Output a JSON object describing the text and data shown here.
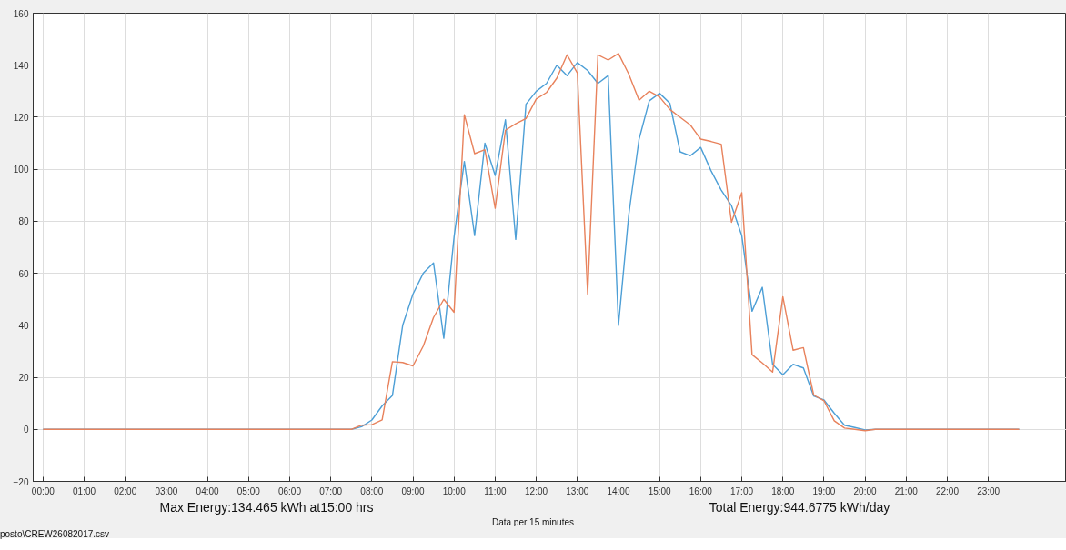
{
  "chart_data": {
    "type": "line",
    "annotations": [
      "Max Energy:134.465 kWh at15:00 hrs",
      "Total Energy:944.6775 kWh/day",
      "Data per 15 minutes",
      "posto\\CREW26082017.csv"
    ],
    "x": [
      0,
      7.25,
      7.5,
      7.75,
      8,
      8.25,
      8.5,
      8.75,
      9,
      9.25,
      9.5,
      9.75,
      10,
      10.25,
      10.5,
      10.75,
      11,
      11.25,
      11.5,
      11.75,
      12,
      12.25,
      12.5,
      12.75,
      13,
      13.25,
      13.5,
      13.75,
      14,
      14.25,
      14.5,
      14.75,
      15,
      15.25,
      15.5,
      15.75,
      16,
      16.25,
      16.5,
      16.75,
      17,
      17.25,
      17.5,
      17.75,
      18,
      18.25,
      18.5,
      18.75,
      19,
      19.25,
      19.5,
      19.75,
      20,
      20.25,
      23.75
    ],
    "series": [
      {
        "color": "#4d9fd6",
        "values": [
          0,
          0,
          0,
          1,
          3.6,
          9,
          13,
          40,
          52,
          60,
          64,
          35,
          74,
          103,
          74.5,
          110,
          97.6,
          119,
          73,
          125,
          130,
          133,
          140,
          136,
          141,
          138,
          133,
          136,
          40,
          82.5,
          111.5,
          126.3,
          129.2,
          125.4,
          106.7,
          105.2,
          108.4,
          99.5,
          92,
          86,
          74.5,
          45.4,
          54.6,
          25,
          21,
          25,
          23.6,
          12.8,
          11.3,
          6.2,
          1.6,
          0.7,
          -0.2,
          0,
          0
        ]
      },
      {
        "color": "#e8825c",
        "values": [
          0,
          0,
          0,
          1.6,
          1.8,
          3.6,
          26,
          25.7,
          24.4,
          32,
          43,
          50,
          45,
          121,
          106,
          107.5,
          85,
          115,
          117.5,
          119.5,
          127,
          129.5,
          135,
          144,
          137,
          52,
          144,
          142,
          144.5,
          136.6,
          126.5,
          130,
          127.8,
          123,
          120,
          117,
          111.6,
          110.7,
          109.6,
          79.6,
          91,
          28.7,
          25.5,
          22,
          51,
          30.4,
          31.4,
          13.2,
          11,
          3.3,
          0.5,
          0,
          -0.5,
          0,
          0
        ]
      }
    ],
    "xlim": [
      -0.24,
      24.9
    ],
    "ylim": [
      -20,
      160
    ],
    "xticks": [
      {
        "value": 0,
        "label": "00:00"
      },
      {
        "value": 1,
        "label": "01:00"
      },
      {
        "value": 2,
        "label": "02:00"
      },
      {
        "value": 3,
        "label": "03:00"
      },
      {
        "value": 4,
        "label": "04:00"
      },
      {
        "value": 5,
        "label": "05:00"
      },
      {
        "value": 6,
        "label": "06:00"
      },
      {
        "value": 7,
        "label": "07:00"
      },
      {
        "value": 8,
        "label": "08:00"
      },
      {
        "value": 9,
        "label": "09:00"
      },
      {
        "value": 10,
        "label": "10:00"
      },
      {
        "value": 11,
        "label": "11:00"
      },
      {
        "value": 12,
        "label": "12:00"
      },
      {
        "value": 13,
        "label": "13:00"
      },
      {
        "value": 14,
        "label": "14:00"
      },
      {
        "value": 15,
        "label": "15:00"
      },
      {
        "value": 16,
        "label": "16:00"
      },
      {
        "value": 17,
        "label": "17:00"
      },
      {
        "value": 18,
        "label": "18:00"
      },
      {
        "value": 19,
        "label": "19:00"
      },
      {
        "value": 20,
        "label": "20:00"
      },
      {
        "value": 21,
        "label": "21:00"
      },
      {
        "value": 22,
        "label": "22:00"
      },
      {
        "value": 23,
        "label": "23:00"
      }
    ],
    "yticks": [
      -20,
      0,
      20,
      40,
      60,
      80,
      100,
      120,
      140,
      160
    ],
    "grid": true,
    "line_style": "solid"
  }
}
